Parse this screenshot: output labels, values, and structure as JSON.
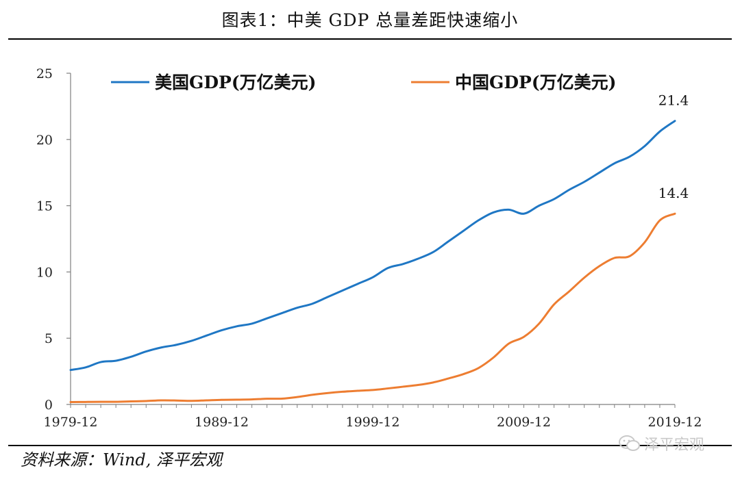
{
  "figure": {
    "title": "图表1：中美 GDP 总量差距快速缩小",
    "source": "资料来源：Wind, 泽平宏观",
    "watermark": "泽平宏观"
  },
  "chart_data": {
    "type": "line",
    "title": "图表1：中美 GDP 总量差距快速缩小",
    "xlabel": "",
    "ylabel": "",
    "ylim": [
      0,
      25
    ],
    "yticks": [
      0,
      5,
      10,
      15,
      20,
      25
    ],
    "xticks": [
      "1979-12",
      "1989-12",
      "1999-12",
      "2009-12",
      "2019-12"
    ],
    "grid": false,
    "legend": "top",
    "x": [
      1979,
      1980,
      1981,
      1982,
      1983,
      1984,
      1985,
      1986,
      1987,
      1988,
      1989,
      1990,
      1991,
      1992,
      1993,
      1994,
      1995,
      1996,
      1997,
      1998,
      1999,
      2000,
      2001,
      2002,
      2003,
      2004,
      2005,
      2006,
      2007,
      2008,
      2009,
      2010,
      2011,
      2012,
      2013,
      2014,
      2015,
      2016,
      2017,
      2018,
      2019
    ],
    "series": [
      {
        "name": "美国GDP(万亿美元)",
        "color": "#1f77c4",
        "values": [
          2.6,
          2.8,
          3.2,
          3.3,
          3.6,
          4.0,
          4.3,
          4.5,
          4.8,
          5.2,
          5.6,
          5.9,
          6.1,
          6.5,
          6.9,
          7.3,
          7.6,
          8.1,
          8.6,
          9.1,
          9.6,
          10.3,
          10.6,
          11.0,
          11.5,
          12.3,
          13.1,
          13.9,
          14.5,
          14.7,
          14.4,
          15.0,
          15.5,
          16.2,
          16.8,
          17.5,
          18.2,
          18.7,
          19.5,
          20.6,
          21.4
        ],
        "end_label": "21.4"
      },
      {
        "name": "中国GDP(万亿美元)",
        "color": "#ed7d31",
        "values": [
          0.18,
          0.19,
          0.2,
          0.2,
          0.23,
          0.26,
          0.31,
          0.3,
          0.27,
          0.31,
          0.35,
          0.36,
          0.38,
          0.43,
          0.44,
          0.56,
          0.73,
          0.86,
          0.96,
          1.03,
          1.09,
          1.21,
          1.34,
          1.47,
          1.66,
          1.96,
          2.29,
          2.75,
          3.55,
          4.59,
          5.1,
          6.09,
          7.55,
          8.53,
          9.57,
          10.44,
          11.06,
          11.19,
          12.24,
          13.89,
          14.4
        ],
        "end_label": "14.4"
      }
    ]
  }
}
